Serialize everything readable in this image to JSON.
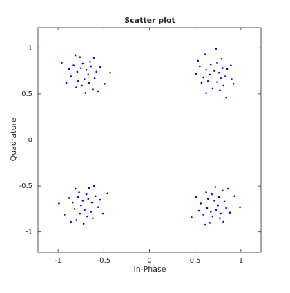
{
  "chart_data": {
    "type": "scatter",
    "title": "Scatter plot",
    "x_label": "In-Phase",
    "y_label": "Quadrature",
    "xlim": [
      -1.22,
      1.22
    ],
    "ylim": [
      -1.22,
      1.22
    ],
    "xticks": [
      -1,
      -0.5,
      0,
      0.5,
      1
    ],
    "yticks": [
      -1,
      -0.5,
      0,
      0.5,
      1
    ],
    "grid": false,
    "x": [
      -0.69,
      -0.79,
      -0.6,
      -0.74,
      -0.65,
      -0.86,
      -0.54,
      -0.76,
      -0.62,
      -0.83,
      -0.71,
      -0.67,
      -0.91,
      -0.58,
      -0.78,
      -0.49,
      -0.81,
      -0.64,
      -0.73,
      -0.56,
      -0.88,
      -0.7,
      -0.61,
      -0.8,
      -0.43,
      -0.96,
      -0.66,
      -0.75,
      0.76,
      0.74,
      0.67,
      0.59,
      0.85,
      0.69,
      0.79,
      0.9,
      0.55,
      0.81,
      0.66,
      0.71,
      0.62,
      0.74,
      0.64,
      0.61,
      0.92,
      0.8,
      0.83,
      0.53,
      0.77,
      0.51,
      0.89,
      0.57,
      0.73,
      0.84,
      0.62,
      0.78,
      -0.73,
      -0.63,
      -0.82,
      -0.68,
      -0.77,
      -0.56,
      -0.88,
      -0.66,
      -0.8,
      -0.59,
      -0.71,
      -0.75,
      -0.51,
      -0.84,
      -0.64,
      -0.93,
      -0.61,
      -0.78,
      -0.69,
      -0.86,
      -0.54,
      -0.72,
      -0.81,
      -0.62,
      -0.99,
      -0.46,
      -0.76,
      -0.67,
      0.73,
      0.63,
      0.82,
      0.68,
      0.77,
      0.56,
      0.88,
      0.66,
      0.8,
      0.59,
      0.71,
      0.75,
      0.51,
      0.84,
      0.64,
      0.93,
      0.61,
      0.78,
      0.69,
      0.86,
      0.54,
      0.72,
      0.81,
      0.62,
      0.99,
      0.46,
      0.76,
      0.67
    ],
    "series": [
      {
        "color": "#0000ff",
        "values": [
          0.76,
          0.74,
          0.67,
          0.59,
          0.85,
          0.69,
          0.79,
          0.9,
          0.55,
          0.81,
          0.66,
          0.71,
          0.62,
          0.74,
          0.64,
          0.61,
          0.92,
          0.8,
          0.83,
          0.53,
          0.77,
          0.51,
          0.89,
          0.57,
          0.73,
          0.84,
          0.62,
          0.78,
          0.73,
          0.63,
          0.82,
          0.68,
          0.77,
          0.56,
          0.88,
          0.66,
          0.8,
          0.59,
          0.71,
          0.75,
          0.51,
          0.84,
          0.64,
          0.93,
          0.61,
          0.78,
          0.69,
          0.86,
          0.54,
          0.72,
          0.81,
          0.62,
          0.99,
          0.46,
          0.76,
          0.67,
          -0.66,
          -0.68,
          -0.75,
          -0.83,
          -0.57,
          -0.73,
          -0.63,
          -0.52,
          -0.87,
          -0.61,
          -0.76,
          -0.71,
          -0.8,
          -0.68,
          -0.78,
          -0.81,
          -0.5,
          -0.62,
          -0.59,
          -0.89,
          -0.65,
          -0.91,
          -0.53,
          -0.85,
          -0.69,
          -0.58,
          -0.8,
          -0.64,
          -0.76,
          -0.74,
          -0.67,
          -0.59,
          -0.85,
          -0.69,
          -0.79,
          -0.9,
          -0.55,
          -0.81,
          -0.66,
          -0.71,
          -0.62,
          -0.74,
          -0.64,
          -0.61,
          -0.92,
          -0.8,
          -0.83,
          -0.53,
          -0.77,
          -0.51,
          -0.89,
          -0.57,
          -0.73,
          -0.84,
          -0.62,
          -0.78
        ]
      }
    ]
  }
}
